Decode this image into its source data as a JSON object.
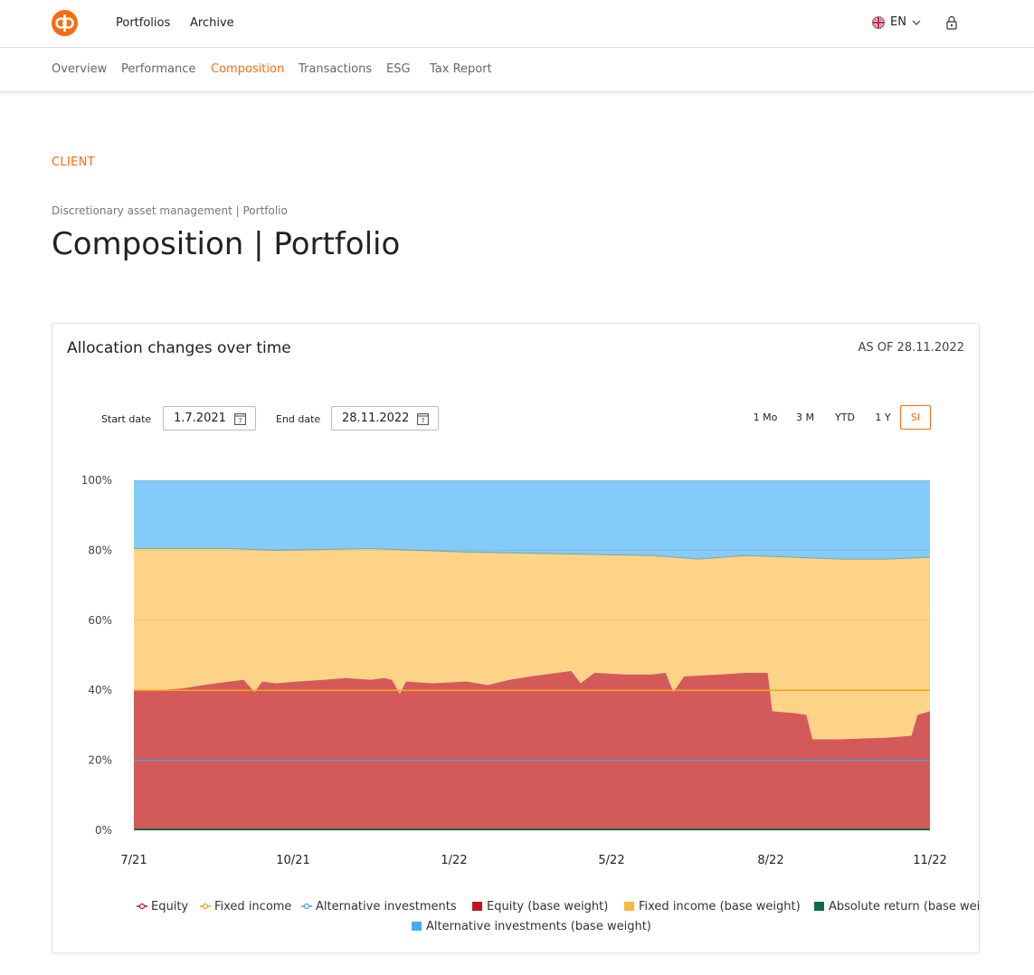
{
  "nav": {
    "items": [
      "Portfolios",
      "Archive"
    ],
    "language": "EN"
  },
  "tabs": [
    "Overview",
    "Performance",
    "Composition",
    "Transactions",
    "ESG",
    "Tax Report"
  ],
  "active_tab": "Composition",
  "header": {
    "client": "CLIENT",
    "breadcrumb": "Discretionary asset management | Portfolio",
    "title": "Composition | Portfolio"
  },
  "card": {
    "title": "Allocation changes over time",
    "as_of": "AS OF 28.11.2022",
    "start_label": "Start date",
    "start_value": "1.7.2021",
    "end_label": "End date",
    "end_value": "28.11.2022",
    "ranges": [
      "1 Mo",
      "3 M",
      "YTD",
      "1 Y",
      "SI"
    ],
    "active_range": "SI"
  },
  "colors": {
    "accent": "#ff6a10",
    "equity_area": "#d45a5a",
    "fixed_area": "#fdd487",
    "alt_area": "#85cbf9",
    "abs_area": "#0d6b4a",
    "equity_line": "#c0161b",
    "fixed_line": "#f2a51a",
    "alt_line": "#4a9de0"
  },
  "chart_data": {
    "type": "area",
    "x_ticks": [
      "7/21",
      "10/21",
      "1/22",
      "5/22",
      "8/22",
      "11/22"
    ],
    "y_ticks": [
      "0%",
      "20%",
      "40%",
      "60%",
      "80%",
      "100%"
    ],
    "ylim": [
      0,
      100
    ],
    "stacked": true,
    "series": [
      {
        "name": "Equity (base weight)",
        "kind": "area",
        "points": [
          [
            "1.7.2021",
            40
          ],
          [
            "15.7.2021",
            40
          ],
          [
            "1.8.2021",
            40.5
          ],
          [
            "15.8.2021",
            41.5
          ],
          [
            "1.9.2021",
            42.5
          ],
          [
            "10.9.2021",
            43
          ],
          [
            "17.9.2021",
            39.5
          ],
          [
            "22.9.2021",
            42.5
          ],
          [
            "1.10.2021",
            42
          ],
          [
            "15.10.2021",
            42.5
          ],
          [
            "1.11.2021",
            43
          ],
          [
            "15.11.2021",
            43.5
          ],
          [
            "1.12.2021",
            43
          ],
          [
            "10.12.2021",
            43.5
          ],
          [
            "15.12.2021",
            43
          ],
          [
            "20.12.2021",
            39
          ],
          [
            "24.12.2021",
            42.5
          ],
          [
            "10.1.2022",
            42
          ],
          [
            "1.2.2022",
            42.5
          ],
          [
            "15.2.2022",
            41.5
          ],
          [
            "1.3.2022",
            43
          ],
          [
            "15.3.2022",
            44
          ],
          [
            "1.4.2022",
            45
          ],
          [
            "10.4.2022",
            45.5
          ],
          [
            "16.4.2022",
            42
          ],
          [
            "25.4.2022",
            45
          ],
          [
            "15.5.2022",
            44.5
          ],
          [
            "1.6.2022",
            44.5
          ],
          [
            "10.6.2022",
            45
          ],
          [
            "15.6.2022",
            39.5
          ],
          [
            "22.6.2022",
            44
          ],
          [
            "15.7.2022",
            44.5
          ],
          [
            "1.8.2022",
            45
          ],
          [
            "15.8.2022",
            45
          ],
          [
            "18.8.2022",
            34
          ],
          [
            "1.9.2022",
            33.5
          ],
          [
            "9.9.2022",
            33
          ],
          [
            "13.9.2022",
            26
          ],
          [
            "1.10.2022",
            26
          ],
          [
            "1.11.2022",
            26.5
          ],
          [
            "16.11.2022",
            27
          ],
          [
            "20.11.2022",
            33
          ],
          [
            "28.11.2022",
            34
          ]
        ]
      },
      {
        "name": "Fixed income (base weight)",
        "kind": "area",
        "top_points": [
          [
            "1.7.2021",
            80.5
          ],
          [
            "1.9.2021",
            80.5
          ],
          [
            "1.10.2021",
            80
          ],
          [
            "1.12.2021",
            80.5
          ],
          [
            "1.2.2022",
            79.5
          ],
          [
            "1.4.2022",
            79
          ],
          [
            "1.6.2022",
            78.5
          ],
          [
            "1.7.2022",
            77.5
          ],
          [
            "1.8.2022",
            78.5
          ],
          [
            "1.9.2022",
            78
          ],
          [
            "1.10.2022",
            77.5
          ],
          [
            "1.11.2022",
            77.5
          ],
          [
            "28.11.2022",
            78
          ]
        ]
      },
      {
        "name": "Absolute return (base weight)",
        "kind": "area",
        "value": 0.5
      },
      {
        "name": "Alternative investments (base weight)",
        "kind": "area",
        "top": 100
      },
      {
        "name": "Equity",
        "kind": "line",
        "value": 40
      },
      {
        "name": "Fixed income",
        "kind": "line",
        "value": 40
      },
      {
        "name": "Alternative investments",
        "kind": "line",
        "value": 20
      }
    ],
    "x_range": [
      "1.7.2021",
      "28.11.2022"
    ],
    "grid": true,
    "legend": "bottom",
    "legend_items": [
      {
        "label": "Equity",
        "marker": "line",
        "color": "#c0161b"
      },
      {
        "label": "Fixed income",
        "marker": "line",
        "color": "#f2a51a"
      },
      {
        "label": "Alternative investments",
        "marker": "line",
        "color": "#4a9de0"
      },
      {
        "label": "Equity (base weight)",
        "marker": "box",
        "color": "#c0161b"
      },
      {
        "label": "Fixed income (base weight)",
        "marker": "box",
        "color": "#fcb83a"
      },
      {
        "label": "Absolute return (base weight)",
        "marker": "box",
        "color": "#0d6b4a"
      },
      {
        "label": "Alternative investments (base weight)",
        "marker": "box",
        "color": "#45acf5"
      }
    ]
  }
}
